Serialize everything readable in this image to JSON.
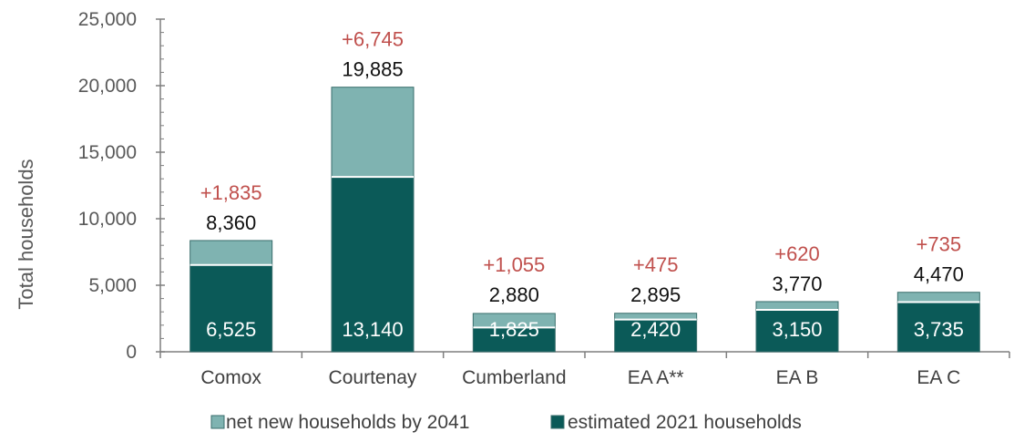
{
  "chart_data": {
    "type": "bar",
    "stacked": true,
    "title": "",
    "ylabel": "Total households",
    "xlabel": "",
    "ylim": [
      0,
      25000
    ],
    "yticks": [
      "0",
      "5,000",
      "10,000",
      "15,000",
      "20,000",
      "25,000"
    ],
    "ytick_values": [
      0,
      5000,
      10000,
      15000,
      20000,
      25000
    ],
    "categories": [
      "Comox",
      "Courtenay",
      "Cumberland",
      "EA A**",
      "EA B",
      "EA C"
    ],
    "series": [
      {
        "name": "estimated 2021 households",
        "values": [
          6525,
          13140,
          1825,
          2420,
          3150,
          3735
        ],
        "color": "#0b5a58"
      },
      {
        "name": "net new households by 2041",
        "values": [
          1835,
          6745,
          1055,
          475,
          620,
          735
        ],
        "color": "#7fb3b1"
      }
    ],
    "base_labels": [
      "6,525",
      "13,140",
      "1,825",
      "2,420",
      "3,150",
      "3,735"
    ],
    "total_labels": [
      "8,360",
      "19,885",
      "2,880",
      "2,895",
      "3,770",
      "4,470"
    ],
    "delta_labels": [
      "+1,835",
      "+6,745",
      "+1,055",
      "+475",
      "+620",
      "+735"
    ],
    "delta_color": "#c0504d",
    "grid": false,
    "legend_position": "bottom"
  }
}
